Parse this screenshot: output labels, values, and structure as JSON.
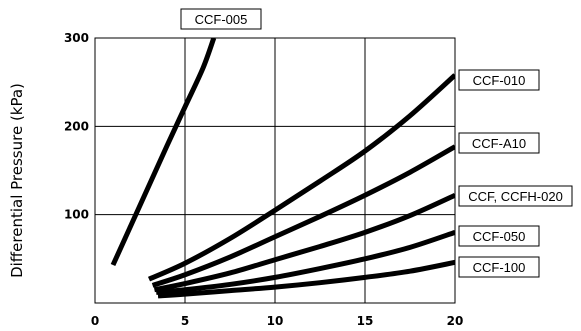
{
  "chart_data": {
    "type": "line",
    "title": "",
    "xlabel": "",
    "ylabel": "Differential Pressure (kPa)",
    "xlim": [
      0,
      20
    ],
    "ylim": [
      0,
      300
    ],
    "x_ticks": [
      "0",
      "5",
      "10",
      "15",
      "20"
    ],
    "y_ticks": [
      "100",
      "200",
      "300"
    ],
    "grid": true,
    "legend": "labels at line ends",
    "series": [
      {
        "name": "CCF-005",
        "x": [
          1,
          2,
          3,
          4,
          5,
          6,
          6.6
        ],
        "y": [
          43,
          88,
          133,
          178,
          222,
          266,
          300
        ]
      },
      {
        "name": "CCF-010",
        "x": [
          3,
          5,
          7.5,
          10,
          12.5,
          15,
          17.5,
          20
        ],
        "y": [
          27,
          45,
          73,
          105,
          138,
          172,
          212,
          258
        ]
      },
      {
        "name": "CCF-A10",
        "x": [
          3.2,
          5,
          7.5,
          10,
          12.5,
          15,
          17.5,
          20
        ],
        "y": [
          20,
          32,
          52,
          75,
          98,
          122,
          148,
          177
        ]
      },
      {
        "name": "CCF, CCFH-020",
        "x": [
          3.3,
          5,
          7.5,
          10,
          12.5,
          15,
          17.5,
          20
        ],
        "y": [
          15,
          22,
          34,
          49,
          64,
          80,
          99,
          122
        ]
      },
      {
        "name": "CCF-050",
        "x": [
          3.4,
          5,
          7.5,
          10,
          12.5,
          15,
          17.5,
          20
        ],
        "y": [
          12,
          15,
          21,
          29,
          39,
          50,
          63,
          80
        ]
      },
      {
        "name": "CCF-100",
        "x": [
          3.5,
          5,
          7.5,
          10,
          12.5,
          15,
          17.5,
          20
        ],
        "y": [
          8,
          10,
          14,
          18,
          23,
          29,
          36,
          46
        ]
      }
    ]
  }
}
